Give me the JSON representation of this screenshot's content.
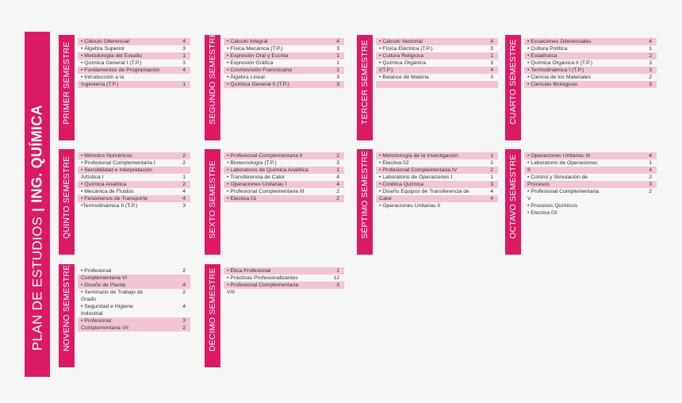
{
  "title": {
    "plan": "PLAN DE ESTUDIOS",
    "separator": "|",
    "program": "ING. QUÍMICA"
  },
  "colors": {
    "accent": "#dc1a64",
    "highlight": "#f2c5d6"
  },
  "semesters": [
    {
      "label": "PRIMER SEMESTRE",
      "courses": [
        {
          "name": "• Cálculo Diferencial",
          "credits": "4",
          "hl": true
        },
        {
          "name": "• Álgebra Superior",
          "credits": "3",
          "hl": false
        },
        {
          "name": "• Metodología del Estudio",
          "credits": "1",
          "hl": true
        },
        {
          "name": "• Química General I (T.P.)",
          "credits": "3",
          "hl": false
        },
        {
          "name": "• Fundamentos de Programación",
          "credits": "4",
          "hl": true
        },
        {
          "name": "• Introducción a la",
          "credits": "",
          "hl": false
        },
        {
          "name": "Ingeniería (T.P.)",
          "credits": "1",
          "hl": true
        }
      ]
    },
    {
      "label": "SEGUNDO SEMESTRE",
      "courses": [
        {
          "name": "• Cálculo Integral",
          "credits": "4",
          "hl": true
        },
        {
          "name": "• Física Mecánica (T.P.)",
          "credits": "3",
          "hl": false
        },
        {
          "name": "• Expresión Oral y Escrita",
          "credits": "1",
          "hl": true
        },
        {
          "name": "• Expresión Gráfica",
          "credits": "1",
          "hl": false
        },
        {
          "name": "• Cosmovisión Franciscana",
          "credits": "1",
          "hl": true
        },
        {
          "name": "• Álgebra Lineal",
          "credits": "3",
          "hl": false
        },
        {
          "name": "• Química General II (T.P.)",
          "credits": "3",
          "hl": true
        }
      ]
    },
    {
      "label": "TERCER SEMESTRE",
      "courses": [
        {
          "name": "• Cálculo Vectorial",
          "credits": "4",
          "hl": true
        },
        {
          "name": "• Física Eléctrica (T.P.)",
          "credits": "3",
          "hl": false
        },
        {
          "name": "• Cultura Religiosa",
          "credits": "1",
          "hl": true
        },
        {
          "name": "• Química Orgánica",
          "credits": "3",
          "hl": false
        },
        {
          "name": "I(T.P.)",
          "credits": "4",
          "hl": true
        },
        {
          "name": "• Balance de Materia",
          "credits": "3",
          "hl": false
        },
        {
          "name": "",
          "credits": "",
          "hl": true
        }
      ]
    },
    {
      "label": "CUARTO SEMESTRE",
      "courses": [
        {
          "name": "• Ecuaciones Diferenciales",
          "credits": "4",
          "hl": true
        },
        {
          "name": "• Cultura Política",
          "credits": "1",
          "hl": false
        },
        {
          "name": "• Estadística",
          "credits": "2",
          "hl": true
        },
        {
          "name": "• Química Orgánica II (T.P.)",
          "credits": "3",
          "hl": false
        },
        {
          "name": "• Termodinámica I (T.P.)",
          "credits": "3",
          "hl": true
        },
        {
          "name": "• Ciencia de los Materiales",
          "credits": "2",
          "hl": false
        },
        {
          "name": "• Ciencias Biológicas",
          "credits": "3",
          "hl": true
        }
      ]
    },
    {
      "label": "QUINTO SEMESTRE",
      "courses": [
        {
          "name": "• Métodos Numéricos",
          "credits": "2",
          "hl": true
        },
        {
          "name": "• Profesional Complementaria I",
          "credits": "2",
          "hl": false
        },
        {
          "name": "• Sensibilidad e Interpretación",
          "credits": "",
          "hl": true
        },
        {
          "name": "Artística I",
          "credits": "1",
          "hl": false
        },
        {
          "name": "• Química Analítica",
          "credits": "2",
          "hl": true
        },
        {
          "name": "• Mecánica de Fluidos",
          "credits": "4",
          "hl": false
        },
        {
          "name": "• Fenómenos de Transporte",
          "credits": "4",
          "hl": true
        },
        {
          "name": "•Termodinámica II (T.P.)",
          "credits": "3",
          "hl": false
        }
      ]
    },
    {
      "label": "SEXTO SEMESTRE",
      "courses": [
        {
          "name": "• Profesional Complementaria II",
          "credits": "2",
          "hl": true
        },
        {
          "name": "• Biotecnología (T.P.)",
          "credits": "3",
          "hl": false
        },
        {
          "name": "• Laboratorio de Química Analítica",
          "credits": "1",
          "hl": true
        },
        {
          "name": "• Transferencia de Calor",
          "credits": "4",
          "hl": false
        },
        {
          "name": "• Operaciones Unitarias I",
          "credits": "4",
          "hl": true
        },
        {
          "name": "• Profesional Complementaria III",
          "credits": "2",
          "hl": false
        },
        {
          "name": "• Electiva 01",
          "credits": "2",
          "hl": true
        }
      ]
    },
    {
      "label": "SÉPTIMO SEMESTRE",
      "courses": [
        {
          "name": "• Metodología de la Investigación",
          "credits": "1",
          "hl": true
        },
        {
          "name": "• Electiva 02",
          "credits": "2",
          "hl": false
        },
        {
          "name": "• Profesional Complementaria IV",
          "credits": "2",
          "hl": true
        },
        {
          "name": "• Laboratorio de Operaciones I",
          "credits": "1",
          "hl": false
        },
        {
          "name": "• Cinética Química",
          "credits": "3",
          "hl": true
        },
        {
          "name": "• Diseño Equipos de Transferencia de",
          "credits": "4",
          "hl": false
        },
        {
          "name": "Calor",
          "credits": "4",
          "hl": true
        },
        {
          "name": "• Operaciones Unitarias II",
          "credits": "",
          "hl": false
        }
      ]
    },
    {
      "label": "OCTAVO SEMESTRE",
      "courses": [
        {
          "name": "• Operaciones Unitarias III",
          "credits": "4",
          "hl": true
        },
        {
          "name": "• Laboratorio de Operaciones",
          "credits": "1",
          "hl": false
        },
        {
          "name": "II",
          "credits": "4",
          "hl": true
        },
        {
          "name": "• Control y Simulación de",
          "credits": "2",
          "hl": false
        },
        {
          "name": "Procesos",
          "credits": "3",
          "hl": true
        },
        {
          "name": "• Profesional Complementaria",
          "credits": "2",
          "hl": false
        },
        {
          "name": "V",
          "credits": "",
          "hl": false
        },
        {
          "name": "• Procesos Químicos",
          "credits": "",
          "hl": false
        },
        {
          "name": "• Electiva 03",
          "credits": "",
          "hl": false
        }
      ]
    },
    {
      "label": "NOVENO SEMESTRE",
      "courses": [
        {
          "name": "• Profesional",
          "credits": "2",
          "hl": false
        },
        {
          "name": "Complementaria VI",
          "credits": "",
          "hl": true
        },
        {
          "name": "• Diseño de Planta",
          "credits": "4",
          "hl": true
        },
        {
          "name": "• Seminario de Trabajo de",
          "credits": "2",
          "hl": false
        },
        {
          "name": "Grado",
          "credits": "",
          "hl": false
        },
        {
          "name": "• Seguridad e Higiene",
          "credits": "4",
          "hl": false
        },
        {
          "name": "Industrial",
          "credits": "",
          "hl": false
        },
        {
          "name": "• Profesional",
          "credits": "3",
          "hl": true
        },
        {
          "name": "Complementaria VII",
          "credits": "2",
          "hl": true
        }
      ]
    },
    {
      "label": "DÉCIMO SEMESTRE",
      "courses": [
        {
          "name": "• Ética Profesional",
          "credits": "1",
          "hl": true
        },
        {
          "name": "• Prácticas Profesionalizantes",
          "credits": "12",
          "hl": false
        },
        {
          "name": "• Profesional Complementaria",
          "credits": "3",
          "hl": true
        },
        {
          "name": "VIII",
          "credits": "",
          "hl": false
        }
      ]
    }
  ]
}
